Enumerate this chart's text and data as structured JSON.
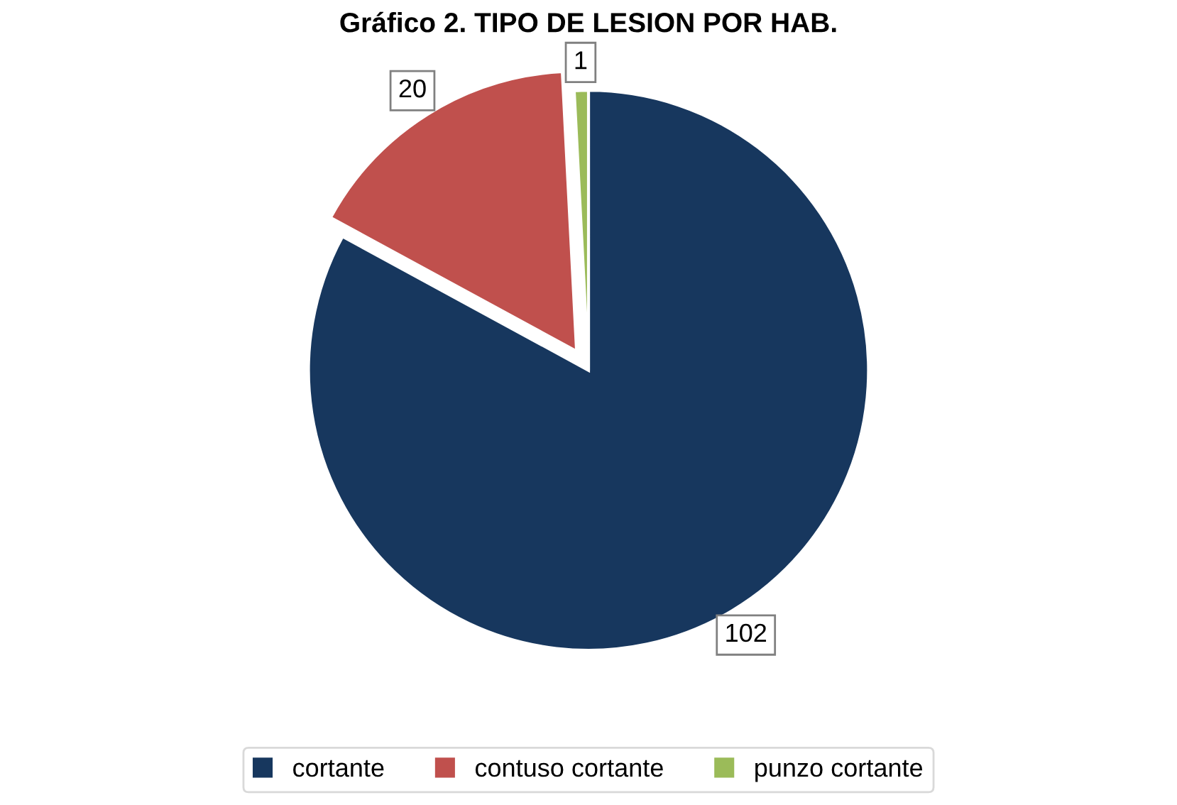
{
  "chart_data": {
    "type": "pie",
    "title": "Gráfico 2. TIPO DE LESION POR HAB.",
    "categories": [
      "cortante",
      "contuso cortante",
      "punzo cortante"
    ],
    "values": [
      102,
      20,
      1
    ],
    "colors": [
      "#17375e",
      "#c0504d",
      "#9bbb59"
    ],
    "data_labels": true,
    "legend": "bottom"
  }
}
